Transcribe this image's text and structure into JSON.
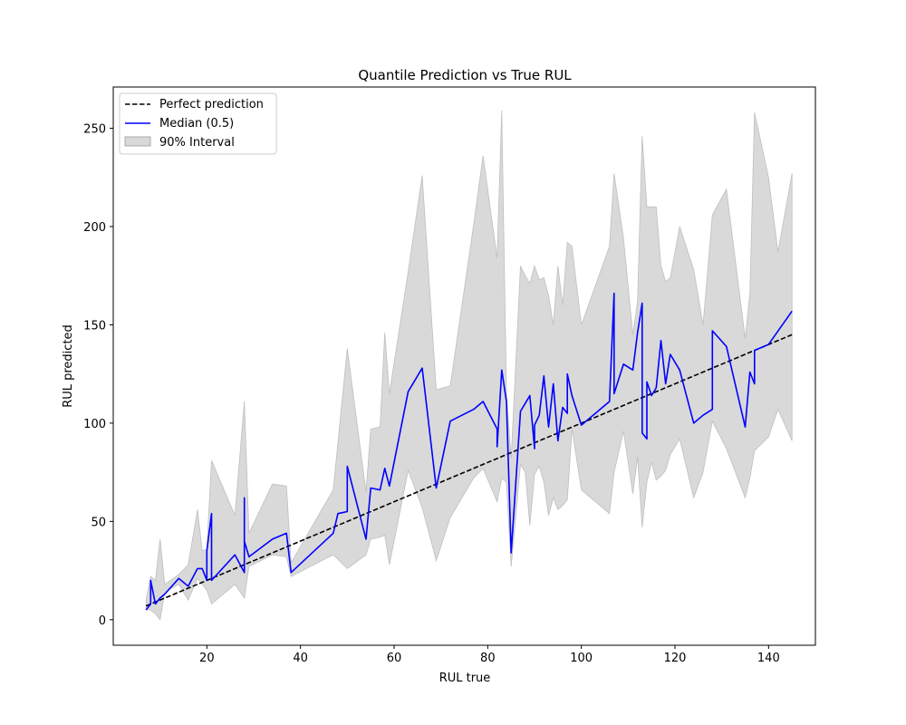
{
  "chart_data": {
    "type": "line",
    "title": "Quantile Prediction vs True RUL",
    "xlabel": "RUL true",
    "ylabel": "RUL predicted",
    "xlim": [
      0,
      150
    ],
    "ylim": [
      -13,
      271
    ],
    "xticks": [
      20,
      40,
      60,
      80,
      100,
      120,
      140
    ],
    "yticks": [
      0,
      50,
      100,
      150,
      200,
      250
    ],
    "grid": false,
    "legend_position": "top-left",
    "legend": [
      "Perfect prediction",
      "Median (0.5)",
      "90% Interval"
    ],
    "colors": {
      "perfect": "#000000",
      "median": "#0000ff",
      "interval": "#bfbfbf"
    },
    "series": [
      {
        "name": "Perfect prediction",
        "style": "dashed",
        "x": [
          7,
          145
        ],
        "y": [
          7,
          145
        ]
      },
      {
        "name": "Median (0.5)",
        "x": [
          7,
          8,
          8,
          9,
          10,
          11,
          14,
          16,
          18,
          19,
          20,
          20,
          21,
          21,
          26,
          28,
          28,
          28,
          29,
          34,
          37,
          38,
          47,
          48,
          50,
          50,
          54,
          55,
          57,
          58,
          59,
          63,
          66,
          69,
          72,
          77,
          79,
          82,
          82,
          83,
          84,
          85,
          87,
          88,
          89,
          90,
          90,
          91,
          92,
          93,
          94,
          95,
          96,
          97,
          97,
          98,
          100,
          106,
          107,
          107,
          109,
          111,
          112,
          113,
          113,
          114,
          114,
          115,
          116,
          117,
          118,
          119,
          121,
          124,
          126,
          128,
          128,
          131,
          135,
          136,
          137,
          137,
          140,
          145
        ],
        "y": [
          5,
          8,
          20,
          8,
          11,
          13,
          21,
          17,
          26,
          26,
          20,
          35,
          54,
          20,
          33,
          24,
          62,
          40,
          32,
          41,
          44,
          24,
          44,
          54,
          55,
          78,
          41,
          67,
          66,
          77,
          68,
          116,
          128,
          67,
          101,
          107,
          111,
          97,
          88,
          127,
          111,
          34,
          106,
          110,
          114,
          87,
          99,
          104,
          124,
          98,
          120,
          91,
          108,
          105,
          125,
          114,
          99,
          111,
          166,
          115,
          130,
          127,
          146,
          161,
          95,
          92,
          121,
          114,
          118,
          142,
          120,
          135,
          127,
          100,
          104,
          107,
          147,
          139,
          98,
          126,
          120,
          137,
          140,
          157
        ]
      },
      {
        "name": "90% Interval",
        "x": [
          7,
          8,
          9,
          10,
          11,
          14,
          16,
          18,
          19,
          20,
          21,
          26,
          28,
          29,
          34,
          37,
          38,
          47,
          50,
          54,
          55,
          57,
          58,
          59,
          63,
          66,
          69,
          72,
          77,
          79,
          82,
          83,
          84,
          85,
          87,
          88,
          89,
          90,
          91,
          92,
          93,
          94,
          95,
          96,
          97,
          98,
          100,
          106,
          107,
          109,
          111,
          112,
          113,
          114,
          115,
          116,
          117,
          118,
          119,
          121,
          124,
          126,
          128,
          131,
          135,
          136,
          137,
          140,
          142,
          145
        ],
        "upper": [
          10,
          22,
          20,
          41,
          18,
          23,
          28,
          56,
          35,
          36,
          81,
          53,
          111,
          44,
          69,
          68,
          29,
          66,
          138,
          65,
          97,
          98,
          146,
          115,
          177,
          226,
          117,
          119,
          201,
          236,
          184,
          259,
          115,
          82,
          180,
          175,
          171,
          180,
          173,
          174,
          165,
          150,
          180,
          160,
          192,
          190,
          150,
          190,
          227,
          194,
          145,
          162,
          246,
          210,
          210,
          210,
          180,
          172,
          174,
          200,
          178,
          150,
          206,
          219,
          143,
          166,
          258,
          225,
          187,
          227
        ],
        "lower": [
          5,
          5,
          3,
          0,
          14,
          18,
          10,
          21,
          18,
          15,
          8,
          18,
          11,
          27,
          33,
          32,
          22,
          33,
          26,
          33,
          41,
          42,
          43,
          28,
          76,
          57,
          30,
          52,
          72,
          77,
          60,
          72,
          70,
          27,
          79,
          75,
          48,
          74,
          78,
          70,
          53,
          62,
          56,
          58,
          61,
          97,
          66,
          54,
          75,
          96,
          64,
          83,
          47,
          70,
          80,
          71,
          73,
          76,
          84,
          92,
          62,
          75,
          101,
          87,
          62,
          72,
          86,
          93,
          107,
          91
        ]
      }
    ]
  }
}
